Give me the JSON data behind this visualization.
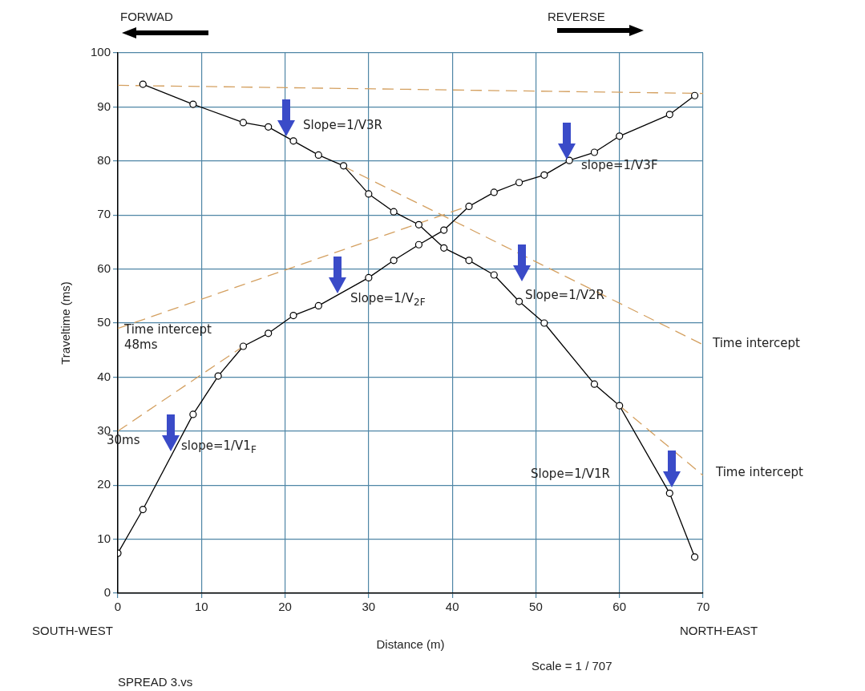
{
  "chart_data": {
    "type": "line",
    "xlabel": "Distance (m)",
    "ylabel": "Traveltime (ms)",
    "xlim": [
      0,
      70
    ],
    "ylim": [
      0,
      100
    ],
    "xticks": [
      0,
      10,
      20,
      30,
      40,
      50,
      60,
      70
    ],
    "yticks": [
      0,
      10,
      20,
      30,
      40,
      50,
      60,
      70,
      80,
      90,
      100
    ],
    "grid": true,
    "marker": "circle",
    "line_style": "solid",
    "series": [
      {
        "color": "#000000",
        "x": [
          0,
          3,
          9,
          12,
          15,
          18,
          21,
          24,
          30,
          33,
          36,
          39,
          42,
          45,
          48,
          51,
          54,
          57,
          60,
          66,
          69
        ],
        "values": [
          7.4,
          15.5,
          33.1,
          40.2,
          45.7,
          48.1,
          51.4,
          53.2,
          58.4,
          61.6,
          64.5,
          67.2,
          71.6,
          74.2,
          76.0,
          77.4,
          80.1,
          81.6,
          84.6,
          88.6,
          92.1
        ]
      },
      {
        "color": "#000000",
        "x": [
          3,
          9,
          15,
          18,
          21,
          24,
          27,
          30,
          33,
          36,
          39,
          42,
          45,
          48,
          51,
          57,
          60,
          66,
          69
        ],
        "values": [
          94.2,
          90.5,
          87.1,
          86.3,
          83.7,
          81.1,
          79.1,
          73.9,
          70.6,
          68.2,
          63.9,
          61.6,
          58.9,
          54.0,
          50.0,
          38.7,
          34.7,
          18.5,
          6.7
        ]
      },
      {
        "color": "#d4a060",
        "x": [
          0,
          15
        ],
        "values": [
          30,
          45.7
        ],
        "marker": "none",
        "line_style": "dashed"
      },
      {
        "color": "#d4a060",
        "x": [
          0,
          42
        ],
        "values": [
          49,
          71.7
        ],
        "marker": "none",
        "line_style": "dashed"
      },
      {
        "color": "#d4a060",
        "x": [
          0,
          70
        ],
        "values": [
          94,
          92.5
        ],
        "marker": "none",
        "line_style": "dashed"
      },
      {
        "color": "#d4a060",
        "x": [
          27,
          70
        ],
        "values": [
          79,
          46
        ],
        "marker": "none",
        "line_style": "dashed"
      },
      {
        "color": "#d4a060",
        "x": [
          60,
          70
        ],
        "values": [
          34.7,
          21.8
        ],
        "marker": "none",
        "line_style": "dashed"
      }
    ],
    "annotations": [
      "FORWAD",
      "REVERSE",
      "SOUTH-WEST",
      "NORTH-EAST",
      "Scale = 1 / 707",
      "SPREAD 3.vs",
      "Slope=1/V3R",
      "slope=1/V3F",
      "Slope=1/V$_{2F}$",
      "Slope=1/V2R",
      "Time intercept",
      "48ms",
      "30ms",
      "slope=1/V1$_{F}$",
      "Slope=1/V1R",
      "Time intercept",
      "Time intercept"
    ]
  }
}
